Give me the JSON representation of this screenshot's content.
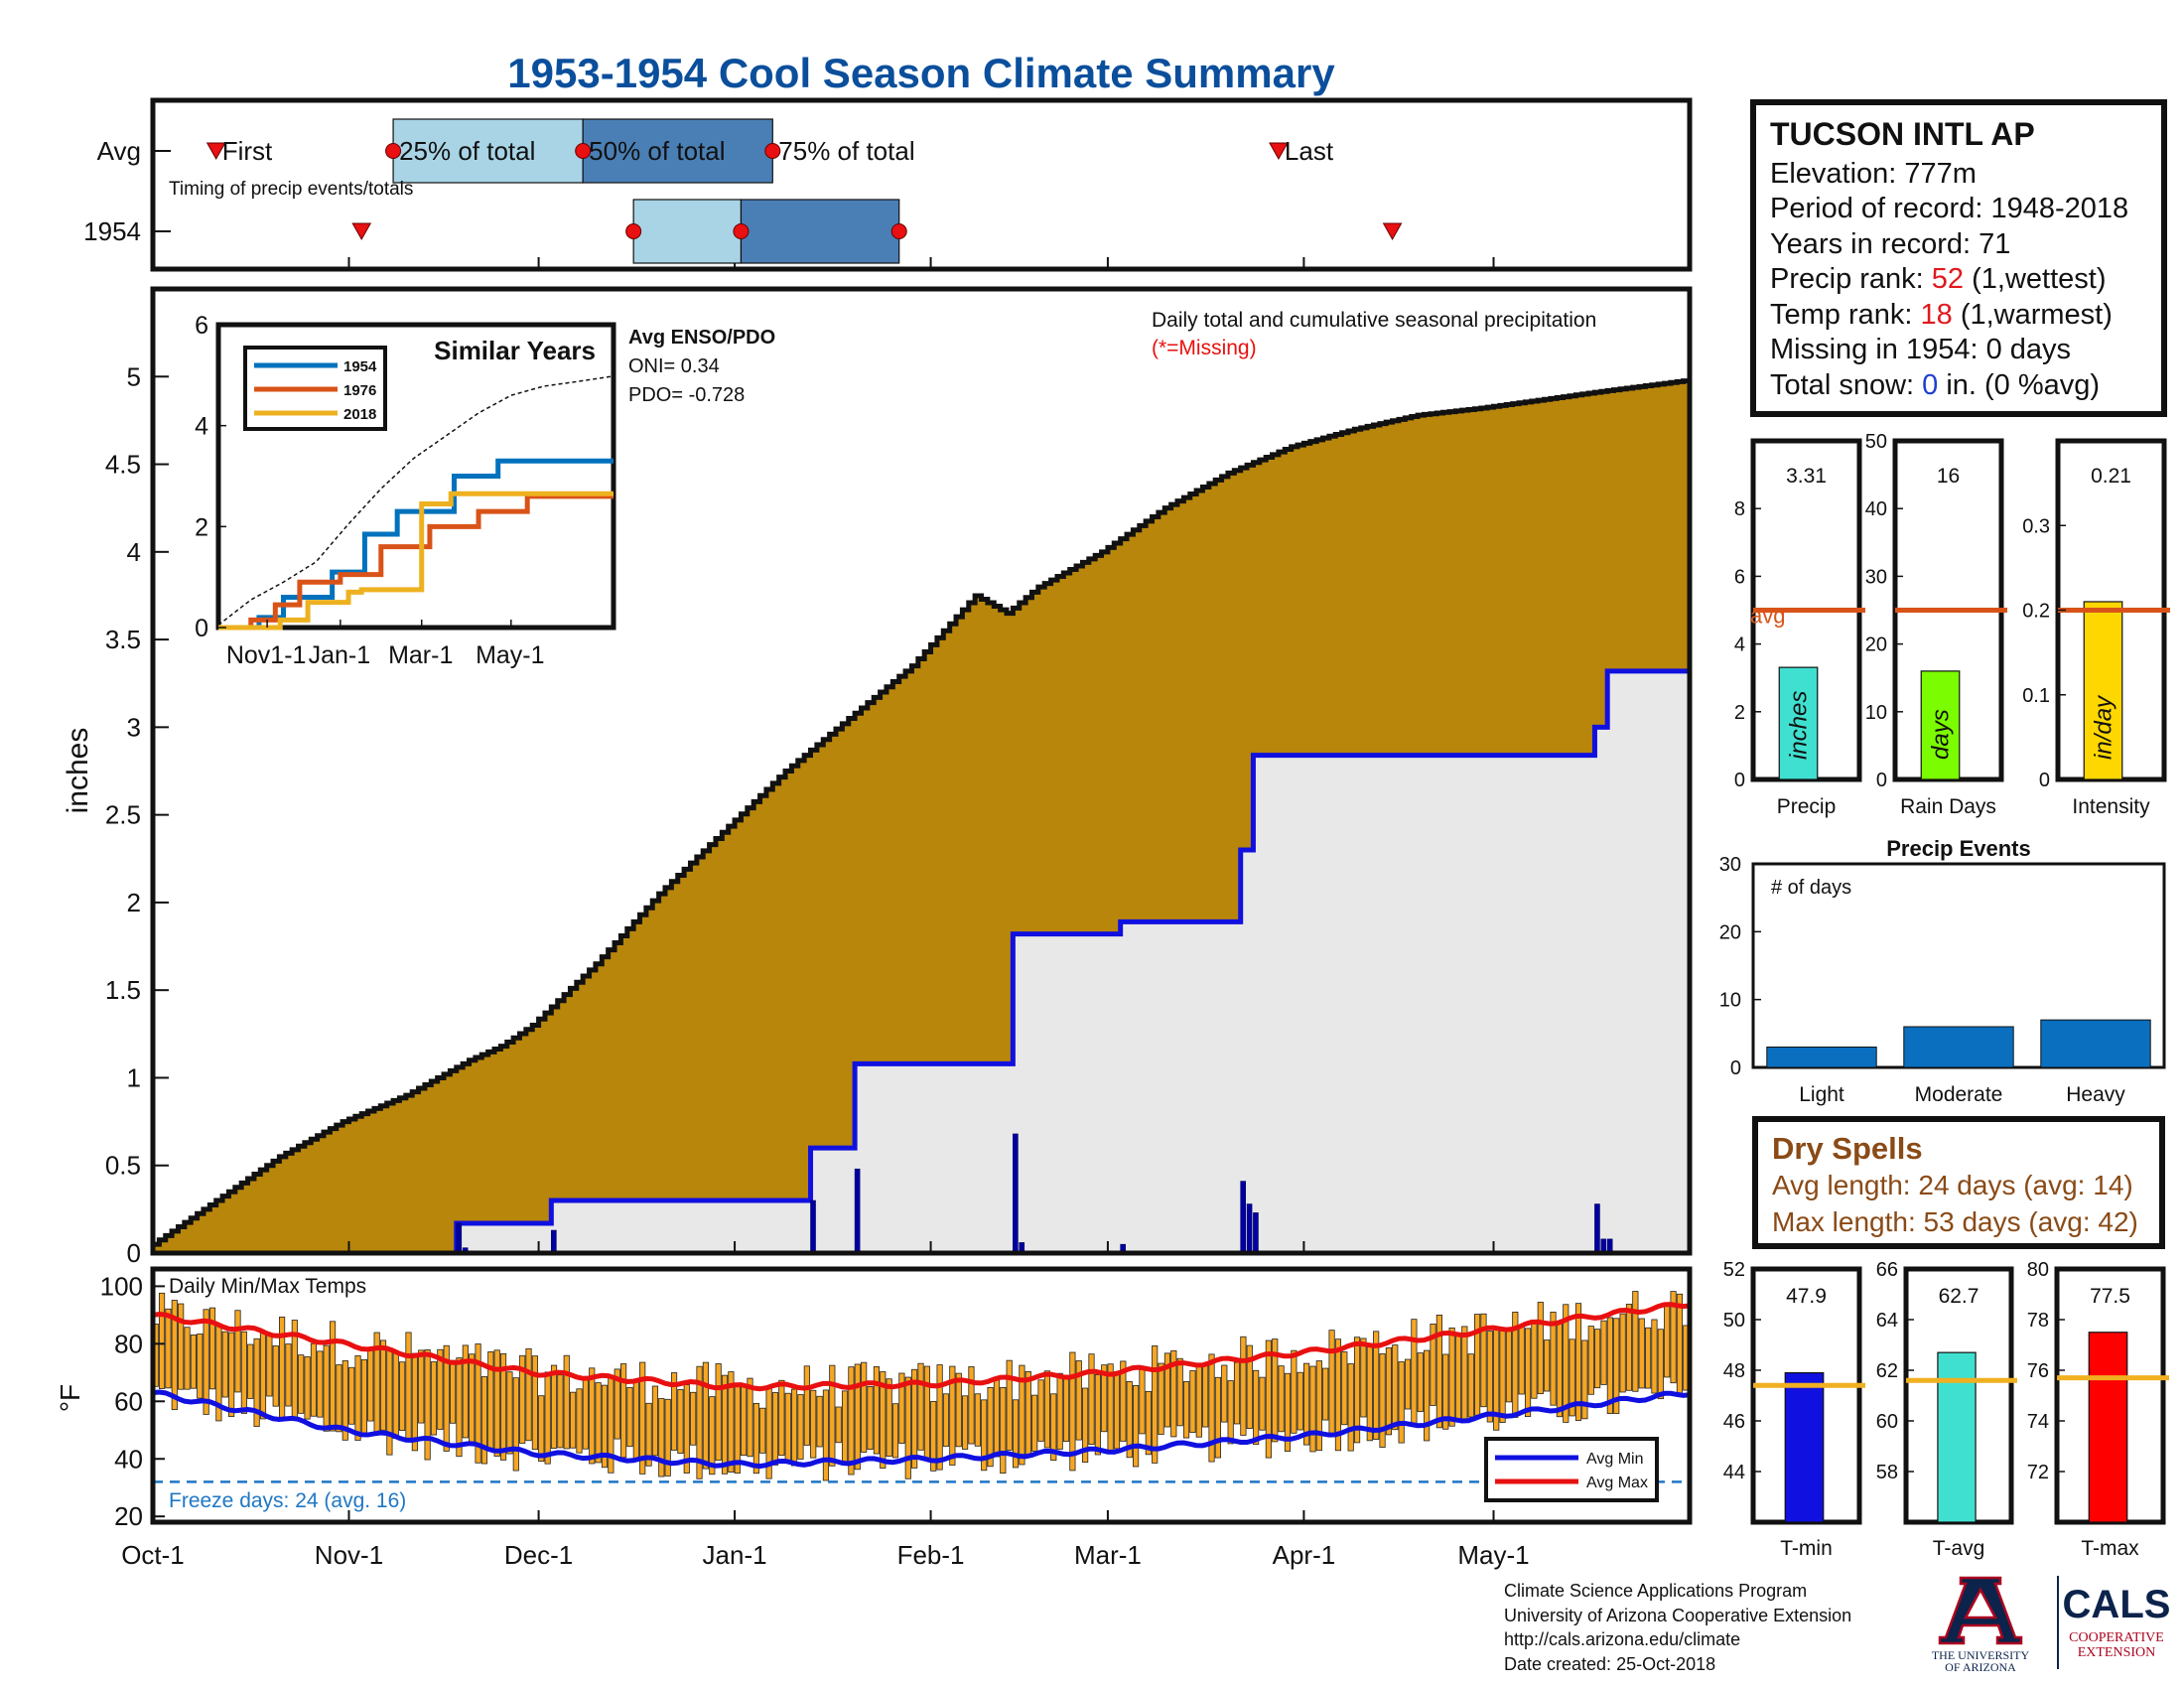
{
  "title": "1953-1954 Cool Season Climate Summary",
  "colors": {
    "title": "#0b4f9c",
    "cum_avg_fill": "#b8860b",
    "cum_year_fill": "#e8e8e8",
    "cum_year_line": "#1010e0",
    "light_blue": "#a8d4e6",
    "dark_blue": "#4a7fb5",
    "avg_line": "#d95319",
    "temp_bar": "#f5a623",
    "avg_min": "#1010e0",
    "avg_max": "#e81010",
    "freeze": "#1f77c4",
    "events_bar": "#0a6fbf",
    "series_1954": "#0072bd",
    "series_1976": "#d95319",
    "series_2018": "#edb120"
  },
  "timing_panel": {
    "row_labels": [
      "Avg",
      "1954"
    ],
    "first_label": "First",
    "last_label": "Last",
    "pct25_label": "25% of total",
    "pct50_label": "50% of total",
    "pct75_label": "75% of total",
    "caption": "Timing of precip events/totals",
    "avg_days": {
      "first": 10,
      "p25": 38,
      "p50": 68,
      "p75": 98,
      "last": 178
    },
    "year_days": {
      "first": 33,
      "p25": 76,
      "p50": 93,
      "p75": 118,
      "last": 196
    }
  },
  "station": {
    "name": "TUCSON INTL AP",
    "elevation_label": "Elevation: 777m",
    "period_label": "Period of record: 1948-2018",
    "years_label": "Years in record: 71",
    "precip_rank_prefix": "Precip rank: ",
    "precip_rank": "52",
    "precip_rank_suffix": " (1,wettest)",
    "temp_rank_prefix": "Temp rank: ",
    "temp_rank": "18",
    "temp_rank_suffix": " (1,warmest)",
    "missing_label": "Missing in 1954: 0 days",
    "snow_prefix": "Total snow: ",
    "snow_value": "0",
    "snow_suffix": " in. (0 %avg)"
  },
  "dry_spells": {
    "title": "Dry Spells",
    "avg_length": "Avg length: 24 days (avg: 14)",
    "max_length": "Max length: 53 days (avg: 42)"
  },
  "credits": {
    "line1": "Climate Science Applications Program",
    "line2": "University of Arizona Cooperative Extension",
    "line3": "http://cals.arizona.edu/climate",
    "line4": " Date created: 25-Oct-2018"
  },
  "logos": {
    "ua_text1": "THE UNIVERSITY",
    "ua_text2": "OF ARIZONA",
    "cals_text": "CALS",
    "cals_sub1": "COOPERATIVE",
    "cals_sub2": "EXTENSION"
  },
  "chart_data": [
    {
      "id": "cumulative",
      "type": "area",
      "ylabel": "inches",
      "ylim": [
        0,
        5.5
      ],
      "yticks": [
        0,
        0.5,
        1,
        1.5,
        2,
        2.5,
        3,
        3.5,
        4,
        4.5,
        5
      ],
      "xlim_days": [
        0,
        243
      ],
      "x_tick_labels": [
        "Oct-1",
        "Nov-1",
        "Dec-1",
        "Jan-1",
        "Feb-1",
        "Mar-1",
        "Apr-1",
        "May-1"
      ],
      "x_tick_days": [
        0,
        31,
        61,
        92,
        123,
        151,
        182,
        212
      ],
      "annotation": "Daily total and cumulative seasonal precipitation",
      "missing_note": "(*=Missing)",
      "avg_cumulative": {
        "days": [
          0,
          10,
          20,
          30,
          40,
          50,
          55,
          60,
          70,
          80,
          90,
          100,
          110,
          120,
          130,
          135,
          140,
          150,
          160,
          170,
          180,
          190,
          200,
          210,
          220,
          230,
          243
        ],
        "values": [
          0.05,
          0.3,
          0.55,
          0.75,
          0.9,
          1.1,
          1.18,
          1.3,
          1.65,
          2.05,
          2.4,
          2.75,
          3.05,
          3.35,
          3.75,
          3.65,
          3.8,
          4.0,
          4.25,
          4.45,
          4.6,
          4.7,
          4.78,
          4.82,
          4.87,
          4.92,
          4.98
        ]
      },
      "year_cumulative": {
        "days": [
          0,
          48,
          48,
          63,
          63,
          104,
          104,
          111,
          111,
          136,
          136,
          153,
          153,
          172,
          172,
          174,
          174,
          228,
          228,
          230,
          230,
          243
        ],
        "values": [
          0,
          0,
          0.17,
          0.17,
          0.3,
          0.3,
          0.6,
          0.6,
          1.08,
          1.08,
          1.82,
          1.82,
          1.89,
          1.89,
          2.3,
          2.3,
          2.84,
          2.84,
          3.0,
          3.0,
          3.32,
          3.32
        ]
      },
      "daily_precip": {
        "days": [
          48,
          49,
          63,
          104,
          111,
          136,
          137,
          153,
          172,
          173,
          174,
          228,
          229,
          230
        ],
        "values": [
          0.17,
          0.03,
          0.13,
          0.3,
          0.48,
          0.68,
          0.06,
          0.05,
          0.41,
          0.28,
          0.23,
          0.28,
          0.08,
          0.08
        ]
      }
    },
    {
      "id": "similar_years",
      "type": "line",
      "title": "Similar Years",
      "ylim": [
        0,
        6
      ],
      "yticks": [
        0,
        2,
        4,
        6
      ],
      "x_tick_labels": [
        "Nov1-1",
        "Jan-1",
        "Mar-1",
        "May-1"
      ],
      "series": [
        {
          "name": "1954",
          "x": [
            0,
            25,
            25,
            40,
            40,
            70,
            70,
            90,
            90,
            110,
            110,
            145,
            145,
            172,
            172,
            243
          ],
          "y": [
            0,
            0,
            0.2,
            0.2,
            0.6,
            0.6,
            1.1,
            1.1,
            1.85,
            1.85,
            2.3,
            2.3,
            3.0,
            3.0,
            3.3,
            3.3
          ]
        },
        {
          "name": "1976",
          "x": [
            0,
            20,
            20,
            35,
            35,
            50,
            50,
            75,
            75,
            100,
            100,
            130,
            130,
            160,
            160,
            190,
            190,
            243
          ],
          "y": [
            0,
            0,
            0.15,
            0.15,
            0.45,
            0.45,
            0.9,
            0.9,
            1.05,
            1.05,
            1.6,
            1.6,
            2.0,
            2.0,
            2.3,
            2.3,
            2.6,
            2.6
          ]
        },
        {
          "name": "2018",
          "x": [
            0,
            38,
            38,
            55,
            55,
            80,
            80,
            88,
            88,
            125,
            125,
            143,
            143,
            243
          ],
          "y": [
            0,
            0,
            0.15,
            0.15,
            0.5,
            0.5,
            0.7,
            0.7,
            0.75,
            0.75,
            2.45,
            2.45,
            2.65,
            2.65
          ]
        }
      ],
      "avg_dashed": {
        "x": [
          0,
          20,
          40,
          60,
          80,
          100,
          120,
          140,
          160,
          180,
          200,
          220,
          243
        ],
        "y": [
          0.05,
          0.55,
          0.9,
          1.3,
          2.05,
          2.75,
          3.35,
          3.8,
          4.25,
          4.6,
          4.78,
          4.87,
          4.98
        ]
      },
      "enso_title": "Avg ENSO/PDO",
      "oni_label": "ONI= 0.34",
      "pdo_label": "PDO= -0.728"
    },
    {
      "id": "precip_bars",
      "type": "bar",
      "panels": [
        {
          "name": "Precip",
          "value": 3.31,
          "label": "3.31",
          "ylim": [
            0,
            10
          ],
          "yticks": [
            0,
            2,
            4,
            6,
            8
          ],
          "avg": 5.0,
          "color": "#40e0d0",
          "inner": "inches",
          "avg_label": "avg"
        },
        {
          "name": "Rain Days",
          "value": 16,
          "label": "16",
          "ylim": [
            0,
            50
          ],
          "yticks": [
            0,
            10,
            20,
            30,
            40,
            50
          ],
          "avg": 25,
          "color": "#7cfc00",
          "inner": "days"
        },
        {
          "name": "Intensity",
          "value": 0.21,
          "label": "0.21",
          "ylim": [
            0,
            0.4
          ],
          "yticks": [
            0,
            0.1,
            0.2,
            0.3
          ],
          "avg": 0.2,
          "color": "#ffd700",
          "inner": "in/day"
        }
      ]
    },
    {
      "id": "precip_events",
      "type": "bar",
      "title": "Precip Events",
      "ylabel_inner": "# of days",
      "categories": [
        "Light",
        "Moderate",
        "Heavy"
      ],
      "values": [
        3,
        6,
        7
      ],
      "ylim": [
        0,
        30
      ],
      "yticks": [
        0,
        10,
        20,
        30
      ]
    },
    {
      "id": "temps",
      "type": "bar",
      "title": "Daily Min/Max Temps",
      "ylabel": "°F",
      "ylim": [
        18,
        106
      ],
      "yticks": [
        20,
        40,
        60,
        80,
        100
      ],
      "freeze_line": 32,
      "freeze_label": "Freeze days: 24 (avg. 16)",
      "legend": [
        "Avg Min",
        "Avg Max"
      ],
      "avg_min": {
        "days": [
          0,
          30,
          60,
          92,
          123,
          151,
          182,
          212,
          243
        ],
        "values": [
          63,
          50,
          42,
          38,
          40,
          43,
          48,
          55,
          63
        ]
      },
      "avg_max": {
        "days": [
          0,
          30,
          60,
          92,
          123,
          151,
          182,
          212,
          243
        ],
        "values": [
          90,
          80,
          70,
          65,
          66,
          70,
          77,
          85,
          94
        ]
      }
    },
    {
      "id": "temp_bars",
      "type": "bar",
      "panels": [
        {
          "name": "T-min",
          "value": 47.9,
          "label": "47.9",
          "ylim": [
            42,
            52
          ],
          "yticks": [
            44,
            46,
            48,
            50,
            52
          ],
          "avg": 47.4,
          "color": "#1010e0"
        },
        {
          "name": "T-avg",
          "value": 62.7,
          "label": "62.7",
          "ylim": [
            56,
            66
          ],
          "yticks": [
            58,
            60,
            62,
            64,
            66
          ],
          "avg": 61.6,
          "color": "#40e0d0"
        },
        {
          "name": "T-max",
          "value": 77.5,
          "label": "77.5",
          "ylim": [
            70,
            80
          ],
          "yticks": [
            72,
            74,
            76,
            78,
            80
          ],
          "avg": 75.7,
          "color": "#ff0000"
        }
      ]
    }
  ]
}
